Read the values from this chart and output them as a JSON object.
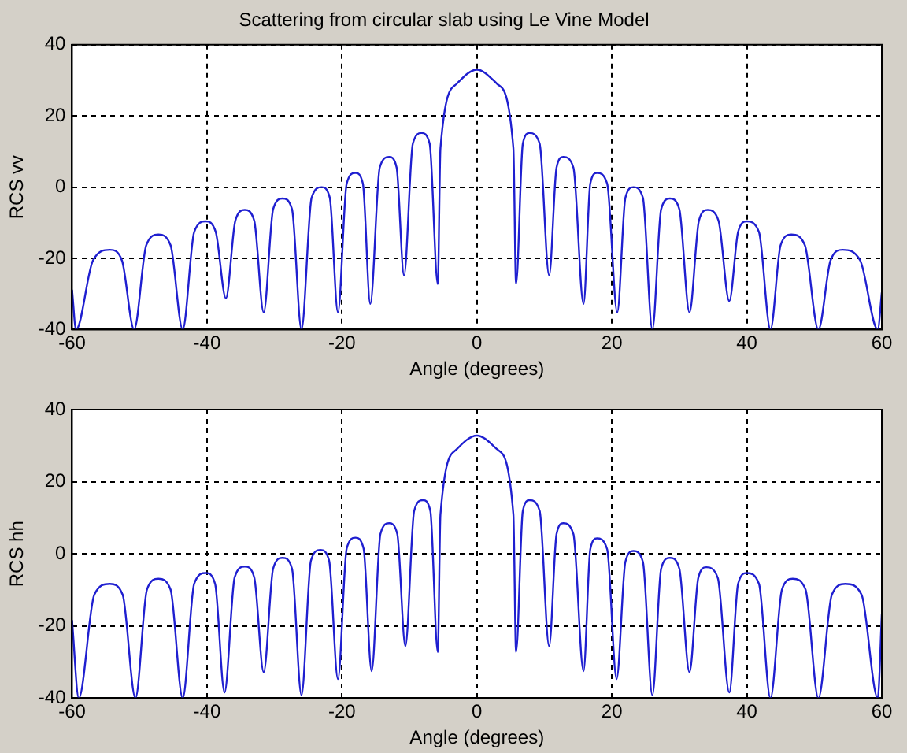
{
  "chart_data": [
    {
      "type": "line",
      "title": "Scattering from circular slab using Le Vine Model",
      "xlabel": "Angle (degrees)",
      "ylabel": "RCS vv",
      "xlim": [
        -60,
        60
      ],
      "xticks": [
        -60,
        -40,
        -20,
        0,
        20,
        40,
        60
      ],
      "ylim": [
        -40,
        40
      ],
      "yticks": [
        -40,
        -20,
        0,
        20,
        40
      ],
      "grid": true,
      "legend": false,
      "marker": "none",
      "line_style": "solid",
      "x": [
        -60,
        -59.4,
        -56.9,
        -54.4,
        -52.6,
        -50.8,
        -49,
        -47.2,
        -45.4,
        -43.6,
        -41.9,
        -40.2,
        -38.7,
        -37.2,
        -35.8,
        -34.4,
        -33,
        -31.6,
        -30.2,
        -28.8,
        -27.4,
        -26,
        -24.5,
        -23,
        -21.8,
        -20.6,
        -19.3,
        -18,
        -16.9,
        -15.8,
        -14.4,
        -13,
        -11.9,
        -10.8,
        -9.5,
        -8.2,
        -7,
        -5.8,
        -5.4,
        -3,
        0,
        3,
        5.4,
        5.8,
        6.8,
        7.8,
        9.3,
        10.7,
        11.8,
        12.8,
        14.3,
        15.8,
        16.8,
        17.8,
        19.3,
        20.8,
        22,
        23.2,
        24.6,
        26,
        27.3,
        28.6,
        30,
        31.5,
        32.9,
        34.2,
        35.8,
        37.4,
        38.7,
        40,
        41.8,
        43.5,
        45,
        46.6,
        48.6,
        50.6,
        52.4,
        54.2,
        56.8,
        59.4,
        60
      ],
      "series": [
        {
          "color": "#1f1fd0",
          "values": [
            -28.8,
            -40,
            -20.6,
            -17.6,
            -20.6,
            -40,
            -16.3,
            -13.3,
            -16.3,
            -40,
            -12.6,
            -9.6,
            -12.6,
            -31.2,
            -9.4,
            -6.4,
            -9.4,
            -35.2,
            -6.2,
            -3.2,
            -6.2,
            -40,
            -3,
            0,
            -3,
            -35.2,
            1,
            4,
            1,
            -32.8,
            5.5,
            8.5,
            5.5,
            -24.8,
            12.2,
            15.2,
            12.2,
            -27.2,
            11,
            29,
            33,
            29,
            11,
            -27.2,
            12.2,
            15.2,
            12.2,
            -24.8,
            5.5,
            8.5,
            5.5,
            -32.8,
            1,
            4,
            1,
            -35.2,
            -3,
            0,
            -3,
            -40,
            -6.2,
            -3.2,
            -6.2,
            -35.2,
            -9.4,
            -6.4,
            -9.4,
            -32,
            -12.6,
            -9.6,
            -12.6,
            -40,
            -16.3,
            -13.3,
            -16.3,
            -40,
            -20.6,
            -17.6,
            -20.6,
            -40,
            -29.6
          ]
        }
      ]
    },
    {
      "type": "line",
      "xlabel": "Angle (degrees)",
      "ylabel": "RCS hh",
      "xlim": [
        -60,
        60
      ],
      "xticks": [
        -60,
        -40,
        -20,
        0,
        20,
        40,
        60
      ],
      "ylim": [
        -40,
        40
      ],
      "yticks": [
        -40,
        -20,
        0,
        20,
        40
      ],
      "grid": true,
      "legend": false,
      "marker": "none",
      "line_style": "solid",
      "x": [
        -60,
        -59,
        -56.7,
        -54.4,
        -52.5,
        -50.6,
        -48.9,
        -47.2,
        -45.4,
        -43.6,
        -41.9,
        -40.2,
        -38.8,
        -37.4,
        -35.9,
        -34.4,
        -33,
        -31.6,
        -30.2,
        -28.8,
        -27.4,
        -26,
        -24.6,
        -23.2,
        -21.9,
        -20.6,
        -19.3,
        -18,
        -16.8,
        -15.6,
        -14.3,
        -13,
        -11.8,
        -10.6,
        -9.3,
        -8,
        -6.9,
        -5.8,
        -5.4,
        -3,
        0,
        3,
        5.4,
        5.8,
        6.8,
        7.8,
        9.3,
        10.7,
        11.8,
        12.8,
        14.3,
        15.8,
        16.8,
        17.8,
        19.3,
        20.7,
        22,
        23.2,
        24.6,
        26,
        27.3,
        28.6,
        30,
        31.5,
        32.8,
        34,
        35.7,
        37.4,
        38.7,
        40,
        41.8,
        43.5,
        45.2,
        46.8,
        48.7,
        50.6,
        52.6,
        54.6,
        57,
        59.4,
        60
      ],
      "series": [
        {
          "color": "#1f1fd0",
          "values": [
            -18.4,
            -40,
            -11.3,
            -8.3,
            -11.3,
            -40,
            -9.9,
            -6.9,
            -9.9,
            -40,
            -8.3,
            -5.3,
            -8.3,
            -38.4,
            -6.5,
            -3.5,
            -6.5,
            -32.8,
            -4.1,
            -1.1,
            -4.1,
            -39.2,
            -1.9,
            1.1,
            -1.9,
            -34.7,
            1.5,
            4.5,
            1.5,
            -32.5,
            5.5,
            8.5,
            5.5,
            -25.6,
            11.9,
            14.9,
            11.9,
            -27.2,
            11,
            29,
            32.8,
            29,
            11,
            -27.2,
            11.9,
            14.9,
            11.9,
            -25.6,
            5.5,
            8.5,
            5.5,
            -32.5,
            1.3,
            4.3,
            1.3,
            -34.7,
            -2.2,
            0.8,
            -2.2,
            -39.2,
            -4.1,
            -1.1,
            -4.1,
            -32.8,
            -6.7,
            -3.7,
            -6.7,
            -38.4,
            -8.3,
            -5.3,
            -8.3,
            -40,
            -9.9,
            -6.9,
            -9.9,
            -40,
            -11.3,
            -8.3,
            -11.3,
            -40,
            -16.8
          ]
        }
      ]
    }
  ]
}
